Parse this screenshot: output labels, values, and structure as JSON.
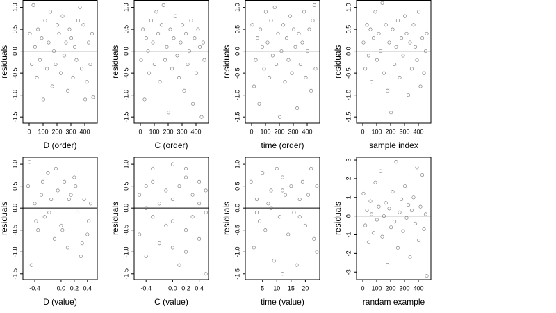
{
  "chart_data": [
    {
      "type": "scatter",
      "xlabel": "D (order)",
      "ylabel": "residuals",
      "color": "#555555",
      "hline": 0,
      "xlim": [
        -45,
        490
      ],
      "ylim": [
        -1.64,
        1.16
      ],
      "xticks": [
        0,
        100,
        200,
        300,
        400
      ],
      "yticks": [
        {
          "value": -1.5,
          "label": "-1.5"
        },
        {
          "value": -1,
          "label": "-1.0"
        },
        {
          "value": -0.5,
          "label": "-0.5"
        },
        {
          "value": 0,
          "label": "0.0"
        },
        {
          "value": 0.5,
          "label": "0.5"
        },
        {
          "value": 1,
          "label": "1.0"
        }
      ],
      "x": [
        5,
        18,
        30,
        42,
        55,
        63,
        77,
        90,
        102,
        115,
        128,
        140,
        152,
        166,
        178,
        190,
        203,
        215,
        228,
        240,
        252,
        265,
        278,
        290,
        303,
        315,
        328,
        340,
        352,
        365,
        378,
        390,
        403,
        415,
        428,
        440,
        452,
        460
      ],
      "y": [
        0.4,
        -0.3,
        1.05,
        0.1,
        -0.6,
        0.5,
        -0.2,
        0.3,
        -1.1,
        0.7,
        -0.4,
        0.2,
        0.9,
        -0.8,
        0.0,
        -0.3,
        0.6,
        0.4,
        -0.5,
        0.8,
        -0.1,
        0.2,
        -0.9,
        0.5,
        0.3,
        -0.6,
        0.1,
        -0.2,
        0.7,
        1.0,
        -0.4,
        0.6,
        -1.1,
        -0.7,
        0.2,
        -0.3,
        0.4,
        -1.05
      ]
    },
    {
      "type": "scatter",
      "xlabel": "C (order)",
      "ylabel": "residuals",
      "color": "#555555",
      "hline": 0,
      "xlim": [
        -45,
        490
      ],
      "ylim": [
        -1.64,
        1.16
      ],
      "xticks": [
        0,
        100,
        200,
        300,
        400
      ],
      "yticks": [
        {
          "value": -1.5,
          "label": "-1.5"
        },
        {
          "value": -1,
          "label": "-1.0"
        },
        {
          "value": -0.5,
          "label": "-0.5"
        },
        {
          "value": 0,
          "label": "0.0"
        },
        {
          "value": 0.5,
          "label": "0.5"
        },
        {
          "value": 1,
          "label": "1.0"
        }
      ],
      "x": [
        5,
        18,
        30,
        42,
        55,
        63,
        77,
        90,
        102,
        115,
        128,
        140,
        152,
        166,
        178,
        190,
        203,
        215,
        228,
        240,
        252,
        265,
        278,
        290,
        303,
        315,
        328,
        340,
        352,
        365,
        378,
        390,
        403,
        415,
        428,
        440,
        452,
        460
      ],
      "y": [
        -0.2,
        0.5,
        -1.1,
        0.3,
        0.0,
        -0.5,
        0.7,
        0.2,
        -0.3,
        0.9,
        0.4,
        -0.7,
        0.6,
        1.05,
        -0.2,
        0.1,
        -1.4,
        0.5,
        -0.4,
        0.3,
        0.8,
        -0.1,
        -0.6,
        0.2,
        0.6,
        -0.9,
        0.4,
        -0.3,
        0.0,
        0.7,
        -1.2,
        0.3,
        -0.5,
        0.5,
        0.1,
        -1.5,
        0.2,
        -0.2
      ]
    },
    {
      "type": "scatter",
      "xlabel": "time (order)",
      "ylabel": "residuals",
      "color": "#555555",
      "hline": 0,
      "xlim": [
        -45,
        490
      ],
      "ylim": [
        -1.64,
        1.16
      ],
      "xticks": [
        0,
        100,
        200,
        300,
        400
      ],
      "yticks": [
        {
          "value": -1.5,
          "label": "-1.5"
        },
        {
          "value": -1,
          "label": "-1.0"
        },
        {
          "value": -0.5,
          "label": "-0.5"
        },
        {
          "value": 0,
          "label": "0.0"
        },
        {
          "value": 0.5,
          "label": "0.5"
        },
        {
          "value": 1,
          "label": "1.0"
        }
      ],
      "x": [
        5,
        18,
        30,
        42,
        55,
        63,
        77,
        90,
        102,
        115,
        128,
        140,
        152,
        166,
        178,
        190,
        203,
        215,
        228,
        240,
        252,
        265,
        278,
        290,
        303,
        315,
        328,
        340,
        352,
        365,
        378,
        390,
        403,
        415,
        428,
        440,
        452,
        460
      ],
      "y": [
        0.6,
        -0.8,
        -0.2,
        0.3,
        -1.2,
        0.5,
        0.1,
        -0.4,
        0.9,
        0.2,
        -0.6,
        0.7,
        -0.1,
        1.0,
        -0.3,
        0.4,
        -1.5,
        0.0,
        0.6,
        -0.7,
        0.3,
        -0.2,
        0.8,
        -0.5,
        0.5,
        0.1,
        -1.3,
        0.4,
        -0.3,
        0.2,
        0.9,
        -0.6,
        0.0,
        0.5,
        -0.9,
        0.7,
        1.05,
        -0.4
      ]
    },
    {
      "type": "scatter",
      "xlabel": "sample index",
      "ylabel": "residuals",
      "color": "#555555",
      "hline": 0,
      "xlim": [
        -45,
        490
      ],
      "ylim": [
        -1.64,
        1.16
      ],
      "xticks": [
        0,
        100,
        200,
        300,
        400
      ],
      "yticks": [
        {
          "value": -1.5,
          "label": "-1.5"
        },
        {
          "value": -1,
          "label": "-1.0"
        },
        {
          "value": -0.5,
          "label": "-0.5"
        },
        {
          "value": 0,
          "label": "0.0"
        },
        {
          "value": 0.5,
          "label": "0.5"
        },
        {
          "value": 1,
          "label": "1.0"
        }
      ],
      "x": [
        5,
        18,
        30,
        42,
        55,
        63,
        77,
        90,
        102,
        115,
        128,
        140,
        152,
        166,
        178,
        190,
        203,
        215,
        228,
        240,
        252,
        265,
        278,
        290,
        303,
        315,
        328,
        340,
        352,
        365,
        378,
        390,
        403,
        415,
        428,
        440,
        452,
        460
      ],
      "y": [
        0.2,
        -0.4,
        0.6,
        -0.1,
        0.5,
        -0.7,
        0.3,
        0.9,
        -0.2,
        0.4,
        0.0,
        1.1,
        -0.5,
        0.6,
        -0.9,
        0.2,
        -1.4,
        0.5,
        -0.3,
        0.1,
        0.7,
        -0.6,
        0.3,
        -0.1,
        0.8,
        0.4,
        -1.0,
        0.2,
        -0.4,
        0.6,
        0.1,
        -0.2,
        0.9,
        -0.8,
        0.3,
        -0.5,
        0.0,
        0.4
      ]
    },
    {
      "type": "scatter",
      "xlabel": "D (value)",
      "ylabel": "residuals",
      "color": "#555555",
      "hline": 0,
      "xlim": [
        -0.58,
        0.55
      ],
      "ylim": [
        -1.63,
        1.16
      ],
      "xticks": [
        -0.4,
        {
          "value": 0,
          "label": "0.0"
        },
        0.2,
        0.4
      ],
      "yticks": [
        {
          "value": -1.5,
          "label": "-1.5"
        },
        {
          "value": -1,
          "label": "-1.0"
        },
        {
          "value": -0.5,
          "label": "-0.5"
        },
        {
          "value": 0,
          "label": "0.0"
        },
        {
          "value": 0.5,
          "label": "0.5"
        },
        {
          "value": 1,
          "label": "1.0"
        }
      ],
      "x": [
        -0.5,
        -0.45,
        -0.4,
        -0.35,
        -0.3,
        -0.25,
        -0.2,
        -0.15,
        -0.1,
        -0.05,
        0.0,
        0.05,
        0.1,
        0.15,
        0.2,
        0.25,
        0.3,
        0.35,
        0.4,
        0.45,
        -0.48,
        -0.38,
        -0.28,
        -0.18,
        -0.08,
        0.02,
        0.12,
        0.22,
        0.32,
        0.42
      ],
      "y": [
        0.5,
        -1.3,
        0.1,
        -0.5,
        0.3,
        -0.2,
        0.8,
        0.2,
        -0.7,
        0.4,
        -0.4,
        0.6,
        -0.9,
        0.3,
        0.7,
        -0.1,
        -1.1,
        0.2,
        -0.6,
        0.1,
        1.05,
        -0.3,
        0.6,
        -0.1,
        0.9,
        -0.5,
        0.2,
        0.5,
        -0.8,
        -0.3
      ]
    },
    {
      "type": "scatter",
      "xlabel": "C (value)",
      "ylabel": "residuals",
      "color": "#555555",
      "hline": 0,
      "xlim": [
        -0.58,
        0.54
      ],
      "ylim": [
        -1.63,
        1.16
      ],
      "xticks": [
        -0.4,
        {
          "value": 0,
          "label": "0.0"
        },
        0.2,
        0.4
      ],
      "yticks": [
        {
          "value": -1.5,
          "label": "-1.5"
        },
        {
          "value": -1,
          "label": "-1.0"
        },
        {
          "value": -0.5,
          "label": "-0.5"
        },
        {
          "value": 0,
          "label": "0.0"
        },
        {
          "value": 0.5,
          "label": "0.5"
        },
        {
          "value": 1,
          "label": "1.0"
        }
      ],
      "x": [
        -0.5,
        -0.5,
        -0.4,
        -0.4,
        -0.3,
        -0.3,
        -0.3,
        -0.2,
        -0.2,
        -0.1,
        -0.1,
        0.0,
        0.0,
        0.0,
        0.1,
        0.1,
        0.2,
        0.2,
        0.2,
        0.3,
        0.3,
        0.4,
        0.4,
        0.4,
        0.5,
        0.5,
        -0.4,
        0.0,
        0.2,
        0.5
      ],
      "y": [
        0.3,
        -0.6,
        0.5,
        -1.1,
        0.9,
        -0.2,
        0.6,
        0.1,
        -0.8,
        0.4,
        -0.4,
        1.0,
        -0.3,
        0.2,
        -1.3,
        0.5,
        0.7,
        -0.5,
        -1.0,
        0.3,
        -0.2,
        0.6,
        -0.7,
        0.1,
        0.4,
        -1.5,
        0.0,
        -0.9,
        0.9,
        -0.1
      ]
    },
    {
      "type": "scatter",
      "xlabel": "time (value)",
      "ylabel": "residuals",
      "color": "#555555",
      "hline": 0,
      "xlim": [
        -1,
        25
      ],
      "ylim": [
        -1.63,
        1.16
      ],
      "xticks": [
        5,
        10,
        15,
        20
      ],
      "yticks": [
        {
          "value": -1.5,
          "label": "-1.5"
        },
        {
          "value": -1,
          "label": "-1.0"
        },
        {
          "value": -0.5,
          "label": "-0.5"
        },
        {
          "value": 0,
          "label": "0.0"
        },
        {
          "value": 0.5,
          "label": "0.5"
        },
        {
          "value": 1,
          "label": "1.0"
        }
      ],
      "x": [
        1,
        2,
        3,
        4,
        5,
        6,
        7,
        8,
        9,
        10,
        11,
        12,
        12,
        13,
        14,
        15,
        16,
        17,
        18,
        19,
        20,
        21,
        22,
        23,
        24,
        24,
        3,
        8,
        12,
        18
      ],
      "y": [
        0.6,
        -0.9,
        0.2,
        -0.3,
        0.8,
        -0.5,
        0.1,
        0.4,
        -1.2,
        0.9,
        -0.2,
        0.7,
        -1.5,
        0.3,
        -0.6,
        0.5,
        -0.1,
        -1.3,
        0.2,
        0.6,
        -0.4,
        0.3,
        0.9,
        -0.7,
        0.5,
        -1.0,
        -0.1,
        0.0,
        0.4,
        -0.2
      ]
    },
    {
      "type": "scatter",
      "xlabel": "randam example",
      "ylabel": "residuals",
      "color": "#555555",
      "hline": 0,
      "xlim": [
        -45,
        490
      ],
      "ylim": [
        -3.4,
        3.15
      ],
      "xticks": [
        0,
        100,
        200,
        300,
        400
      ],
      "yticks": [
        -3,
        -2,
        -1,
        0,
        1,
        2,
        3
      ],
      "x": [
        5,
        18,
        30,
        42,
        55,
        63,
        77,
        90,
        102,
        115,
        128,
        140,
        152,
        166,
        178,
        190,
        203,
        215,
        228,
        240,
        252,
        265,
        278,
        290,
        303,
        315,
        328,
        340,
        352,
        365,
        378,
        390,
        403,
        415,
        428,
        440,
        452,
        460
      ],
      "y": [
        1.2,
        -0.5,
        0.3,
        -1.4,
        0.8,
        0.1,
        -0.9,
        1.8,
        -0.2,
        0.5,
        2.4,
        -1.1,
        0.0,
        0.7,
        -2.6,
        0.4,
        -0.6,
        1.3,
        -0.3,
        2.9,
        -1.7,
        0.2,
        0.9,
        -0.8,
        1.6,
        -0.1,
        0.6,
        -2.2,
        0.3,
        1.0,
        -0.4,
        2.6,
        -1.3,
        0.5,
        2.2,
        -0.7,
        0.1,
        -3.2
      ]
    }
  ]
}
